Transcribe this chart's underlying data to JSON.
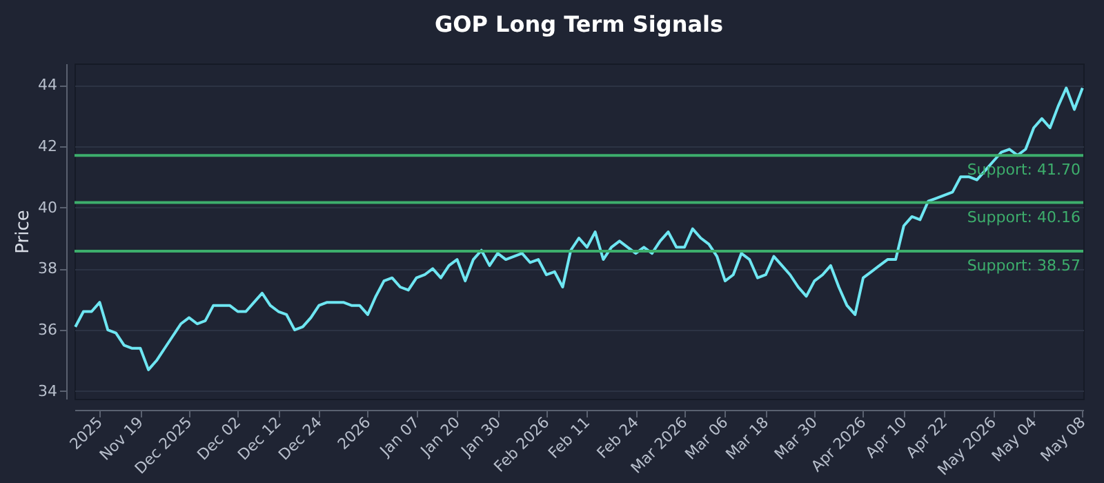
{
  "chart_data": {
    "type": "line",
    "title": "GOP Long Term Signals",
    "ylabel": "Price",
    "categories": [
      null,
      null,
      null,
      "2025",
      null,
      null,
      null,
      null,
      "Nov 19",
      null,
      null,
      null,
      null,
      null,
      "Dec 2025",
      null,
      null,
      null,
      null,
      null,
      "Dec 02",
      null,
      null,
      null,
      null,
      "Dec 12",
      null,
      null,
      null,
      null,
      "Dec 24",
      null,
      null,
      null,
      null,
      null,
      "2026",
      null,
      null,
      null,
      null,
      null,
      "Jan 07",
      null,
      null,
      null,
      null,
      "Jan 20",
      null,
      null,
      null,
      null,
      "Jan 30",
      null,
      null,
      null,
      null,
      null,
      "Feb 2026",
      null,
      null,
      null,
      null,
      "Feb 11",
      null,
      null,
      null,
      null,
      null,
      "Feb 24",
      null,
      null,
      null,
      null,
      null,
      "Mar 2026",
      null,
      null,
      null,
      null,
      "Mar 06",
      null,
      null,
      null,
      null,
      "Mar 18",
      null,
      null,
      null,
      null,
      null,
      "Mar 30",
      null,
      null,
      null,
      null,
      null,
      "Apr 2026",
      null,
      null,
      null,
      null,
      "Apr 10",
      null,
      null,
      null,
      null,
      "Apr 22",
      null,
      null,
      null,
      null,
      null,
      "May 2026",
      null,
      null,
      null,
      null,
      "May 04",
      null,
      null,
      null,
      null,
      null,
      "May 08"
    ],
    "series": [
      {
        "color": "#6ee6f2",
        "values": [
          36.1,
          36.6,
          36.6,
          36.9,
          36.0,
          35.9,
          35.5,
          35.4,
          35.4,
          34.7,
          35.0,
          35.4,
          35.8,
          36.2,
          36.4,
          36.2,
          36.3,
          36.8,
          36.8,
          36.8,
          36.6,
          36.6,
          36.9,
          37.2,
          36.8,
          36.6,
          36.5,
          36.0,
          36.1,
          36.4,
          36.8,
          36.9,
          36.9,
          36.9,
          36.8,
          36.8,
          36.5,
          37.1,
          37.6,
          37.7,
          37.4,
          37.3,
          37.7,
          37.8,
          38.0,
          37.7,
          38.1,
          38.3,
          37.6,
          38.3,
          38.6,
          38.1,
          38.5,
          38.3,
          38.4,
          38.5,
          38.2,
          38.3,
          37.8,
          37.9,
          37.4,
          38.6,
          39.0,
          38.7,
          39.2,
          38.3,
          38.7,
          38.9,
          38.7,
          38.5,
          38.7,
          38.5,
          38.9,
          39.2,
          38.7,
          38.7,
          39.3,
          39.0,
          38.8,
          38.4,
          37.6,
          37.8,
          38.5,
          38.3,
          37.7,
          37.8,
          38.4,
          38.1,
          37.8,
          37.4,
          37.1,
          37.6,
          37.8,
          38.1,
          37.4,
          36.8,
          36.5,
          37.7,
          37.9,
          38.1,
          38.3,
          38.3,
          39.4,
          39.7,
          39.6,
          40.2,
          40.3,
          40.4,
          40.5,
          41.0,
          41.0,
          40.9,
          41.2,
          41.5,
          41.8,
          41.9,
          41.7,
          41.9,
          42.6,
          42.9,
          42.6,
          43.3,
          43.9,
          43.2,
          43.9
        ]
      }
    ],
    "ylim": [
      33.75,
      44.7
    ],
    "yticks": [
      34,
      36,
      38,
      40,
      42,
      44
    ],
    "grid": "y",
    "ref_lines": [
      {
        "axis": "y",
        "value": 41.7,
        "label": "Support: 41.70",
        "color": "#3dae6c"
      },
      {
        "axis": "y",
        "value": 40.16,
        "label": "Support: 40.16",
        "color": "#3dae6c"
      },
      {
        "axis": "y",
        "value": 38.57,
        "label": "Support: 38.57",
        "color": "#3dae6c"
      }
    ]
  }
}
